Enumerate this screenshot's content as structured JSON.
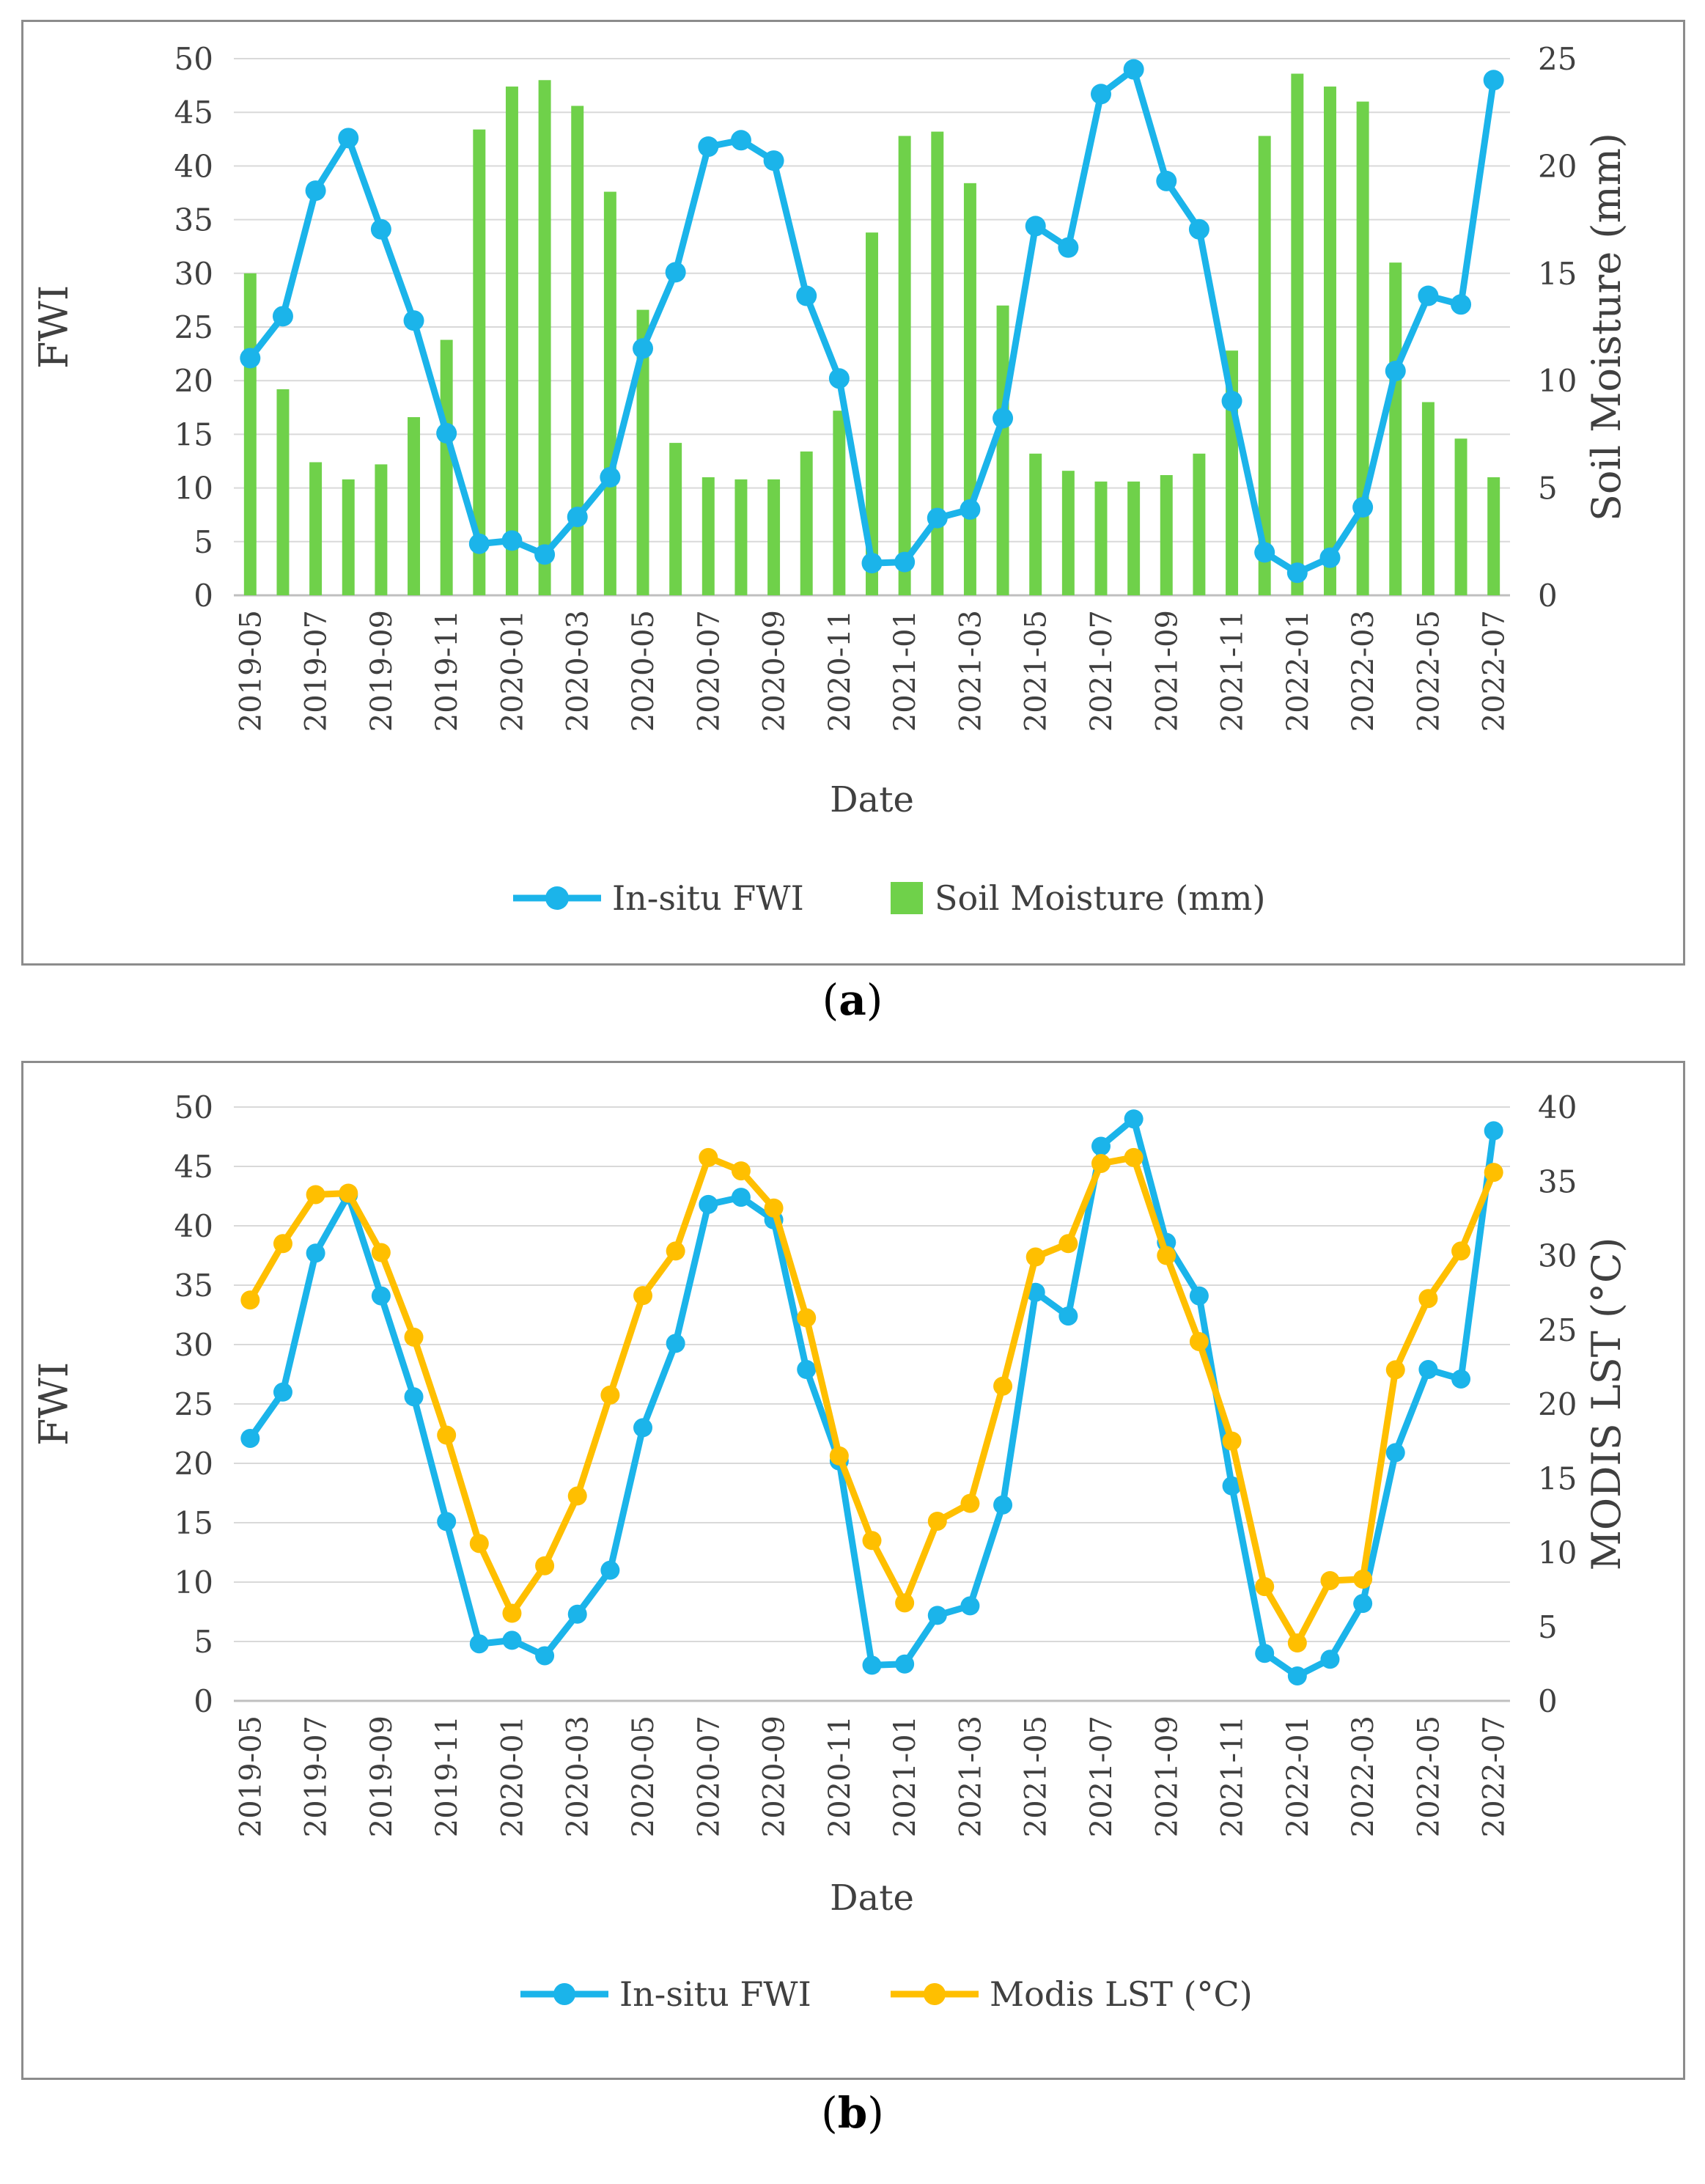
{
  "caption_a": {
    "open": "(",
    "letter": "a",
    "close": ")"
  },
  "caption_b": {
    "open": "(",
    "letter": "b",
    "close": ")"
  },
  "colors": {
    "fwi": "#1bb4ea",
    "soil": "#6fd14a",
    "lst": "#ffbf00",
    "grid": "#d9d9d9",
    "axis": "#bfbfbf"
  },
  "chart_data": [
    {
      "type": "bar+line",
      "xlabel": "Date",
      "ylabel": "FWI",
      "y2label": "Soil Moisture (mm)",
      "ylim": [
        0,
        50
      ],
      "yticks": [
        0,
        5,
        10,
        15,
        20,
        25,
        30,
        35,
        40,
        45,
        50
      ],
      "y2lim": [
        0,
        25
      ],
      "y2ticks": [
        0,
        5,
        10,
        15,
        20,
        25
      ],
      "legend": {
        "position": "bottom"
      },
      "x": [
        "2019-05",
        "2019-06",
        "2019-07",
        "2019-08",
        "2019-09",
        "2019-10",
        "2019-11",
        "2019-12",
        "2020-01",
        "2020-02",
        "2020-03",
        "2020-04",
        "2020-05",
        "2020-06",
        "2020-07",
        "2020-08",
        "2020-09",
        "2020-10",
        "2020-11",
        "2020-12",
        "2021-01",
        "2021-02",
        "2021-03",
        "2021-04",
        "2021-05",
        "2021-06",
        "2021-07",
        "2021-08",
        "2021-09",
        "2021-10",
        "2021-11",
        "2021-12",
        "2022-01",
        "2022-02",
        "2022-03",
        "2022-04",
        "2022-05",
        "2022-06",
        "2022-07"
      ],
      "xticks": [
        "2019-05",
        "2019-07",
        "2019-09",
        "2019-11",
        "2020-01",
        "2020-03",
        "2020-05",
        "2020-07",
        "2020-09",
        "2020-11",
        "2021-01",
        "2021-03",
        "2021-05",
        "2021-07",
        "2021-09",
        "2021-11",
        "2022-01",
        "2022-03",
        "2022-05",
        "2022-07"
      ],
      "series": [
        {
          "name": "In-situ FWI",
          "type": "line",
          "axis": "left",
          "values": [
            22.1,
            26,
            37.7,
            42.6,
            34.1,
            25.6,
            15.1,
            4.8,
            5.1,
            3.8,
            7.3,
            11,
            23,
            30.1,
            41.8,
            42.4,
            40.5,
            27.9,
            20.2,
            3,
            3.1,
            7.2,
            8,
            16.5,
            34.4,
            32.4,
            46.7,
            49,
            38.6,
            34.1,
            18.1,
            4,
            2.1,
            3.5,
            8.2,
            20.9,
            27.9,
            27.1,
            48
          ]
        },
        {
          "name": "Soil Moisture (mm)",
          "type": "bar",
          "axis": "right",
          "values": [
            15,
            9.6,
            6.2,
            5.4,
            6.1,
            8.3,
            11.9,
            21.7,
            23.7,
            24,
            22.8,
            18.8,
            13.3,
            7.1,
            5.5,
            5.4,
            5.4,
            6.7,
            8.6,
            16.9,
            21.4,
            21.6,
            19.2,
            13.5,
            6.6,
            5.8,
            5.3,
            5.3,
            5.6,
            6.6,
            11.4,
            21.4,
            24.3,
            23.7,
            23,
            15.5,
            9,
            7.3,
            5.5
          ]
        }
      ]
    },
    {
      "type": "line",
      "xlabel": "Date",
      "ylabel": "FWI",
      "y2label": "MODIS LST (°C)",
      "ylim": [
        0,
        50
      ],
      "yticks": [
        0,
        5,
        10,
        15,
        20,
        25,
        30,
        35,
        40,
        45,
        50
      ],
      "y2lim": [
        0,
        40
      ],
      "y2ticks": [
        0,
        5,
        10,
        15,
        20,
        25,
        30,
        35,
        40
      ],
      "legend": {
        "position": "bottom"
      },
      "x": [
        "2019-05",
        "2019-06",
        "2019-07",
        "2019-08",
        "2019-09",
        "2019-10",
        "2019-11",
        "2019-12",
        "2020-01",
        "2020-02",
        "2020-03",
        "2020-04",
        "2020-05",
        "2020-06",
        "2020-07",
        "2020-08",
        "2020-09",
        "2020-10",
        "2020-11",
        "2020-12",
        "2021-01",
        "2021-02",
        "2021-03",
        "2021-04",
        "2021-05",
        "2021-06",
        "2021-07",
        "2021-08",
        "2021-09",
        "2021-10",
        "2021-11",
        "2021-12",
        "2022-01",
        "2022-02",
        "2022-03",
        "2022-04",
        "2022-05",
        "2022-06",
        "2022-07"
      ],
      "xticks": [
        "2019-05",
        "2019-07",
        "2019-09",
        "2019-11",
        "2020-01",
        "2020-03",
        "2020-05",
        "2020-07",
        "2020-09",
        "2020-11",
        "2021-01",
        "2021-03",
        "2021-05",
        "2021-07",
        "2021-09",
        "2021-11",
        "2022-01",
        "2022-03",
        "2022-05",
        "2022-07"
      ],
      "series": [
        {
          "name": "In-situ FWI",
          "type": "line",
          "axis": "left",
          "values": [
            22.1,
            26,
            37.7,
            42.6,
            34.1,
            25.6,
            15.1,
            4.8,
            5.1,
            3.8,
            7.3,
            11,
            23,
            30.1,
            41.8,
            42.4,
            40.5,
            27.9,
            20.2,
            3,
            3.1,
            7.2,
            8,
            16.5,
            34.4,
            32.4,
            46.7,
            49,
            38.6,
            34.1,
            18.1,
            4,
            2.1,
            3.5,
            8.2,
            20.9,
            27.9,
            27.1,
            48
          ]
        },
        {
          "name": "Modis LST (°C)",
          "type": "line",
          "axis": "right",
          "values": [
            27,
            30.8,
            34.1,
            34.2,
            30.2,
            24.5,
            17.9,
            10.6,
            5.9,
            9.1,
            13.8,
            20.6,
            27.3,
            30.3,
            36.6,
            35.7,
            33.2,
            25.8,
            16.5,
            10.8,
            6.6,
            12.1,
            13.3,
            21.2,
            29.9,
            30.8,
            36.2,
            36.6,
            30,
            24.2,
            17.5,
            7.7,
            3.9,
            8.1,
            8.2,
            22.3,
            27.1,
            30.3,
            35.6
          ]
        }
      ]
    }
  ]
}
